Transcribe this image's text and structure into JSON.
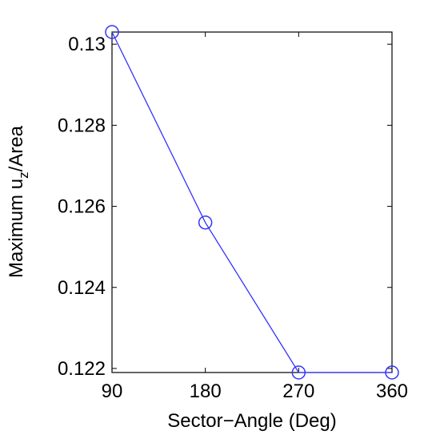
{
  "chart_data": {
    "type": "line",
    "title": "",
    "xlabel": "Sector−Angle (Deg)",
    "ylabel": {
      "prefix": "Maximum u",
      "subscript": "z",
      "suffix": "/Area"
    },
    "xlim": [
      90,
      360
    ],
    "ylim": [
      0.1219,
      0.1303
    ],
    "xticks": [
      90,
      180,
      270,
      360
    ],
    "xtick_labels": [
      "90",
      "180",
      "270",
      "360"
    ],
    "yticks": [
      0.122,
      0.124,
      0.126,
      0.128,
      0.13
    ],
    "ytick_labels": [
      "0.122",
      "0.124",
      "0.126",
      "0.128",
      "0.13"
    ],
    "grid": false,
    "legend": false,
    "series": [
      {
        "x": [
          90,
          180,
          270,
          360
        ],
        "values": [
          0.1303,
          0.1256,
          0.1219,
          0.1219
        ],
        "color": "#3333ff",
        "marker": "circle-open"
      }
    ]
  }
}
